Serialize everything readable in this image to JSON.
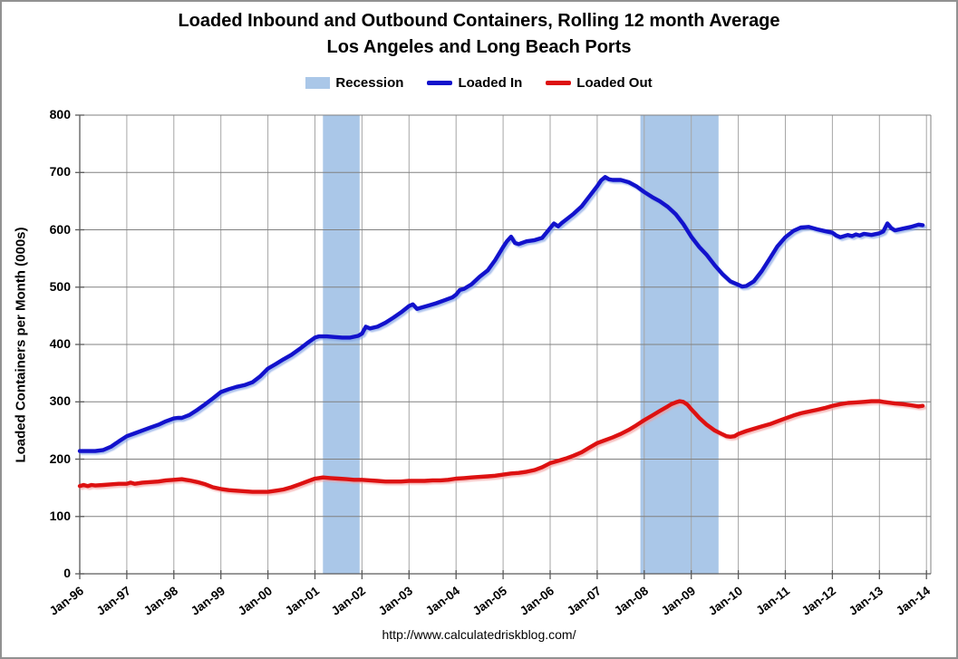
{
  "header": {
    "title": "Loaded Inbound and Outbound Containers, Rolling 12 month Average",
    "subtitle": "Los Angeles and Long Beach Ports"
  },
  "footer": {
    "source_url": "http://www.calculatedriskblog.com/"
  },
  "legend": [
    {
      "label": "Recession",
      "swatch": "box",
      "color": "#aac7e8"
    },
    {
      "label": "Loaded In",
      "swatch": "line",
      "color": "#1212cc"
    },
    {
      "label": "Loaded Out",
      "swatch": "line",
      "color": "#dd1111"
    }
  ],
  "colors": {
    "recession_band": "#aac7e8",
    "loaded_in": "#1212cc",
    "loaded_out": "#dd1111",
    "grid_h": "#808080",
    "grid_v": "#a6a6a6",
    "axis": "#5a5a5a",
    "background": "#ffffff"
  },
  "chart_data": {
    "type": "line",
    "title": "Loaded Inbound and Outbound Containers, Rolling 12 month Average",
    "subtitle": "Los Angeles and Long Beach Ports",
    "ylabel": "Loaded Containers per Month (000s)",
    "xlabel": "",
    "ylim": [
      0,
      800
    ],
    "y_tick_step": 100,
    "y_ticks": [
      0,
      100,
      200,
      300,
      400,
      500,
      600,
      700,
      800
    ],
    "x_ticks": [
      "Jan-96",
      "Jan-97",
      "Jan-98",
      "Jan-99",
      "Jan-00",
      "Jan-01",
      "Jan-02",
      "Jan-03",
      "Jan-04",
      "Jan-05",
      "Jan-06",
      "Jan-07",
      "Jan-08",
      "Jan-09",
      "Jan-10",
      "Jan-11",
      "Jan-12",
      "Jan-13",
      "Jan-14"
    ],
    "x_start_year": 1996,
    "grid": true,
    "legend_position": "top",
    "recessions": [
      {
        "label": "2001 recession",
        "start": 2001.17,
        "end": 2001.95
      },
      {
        "label": "2007-2009 recession",
        "start": 2007.92,
        "end": 2009.58
      }
    ],
    "series": [
      {
        "name": "Loaded In",
        "color": "#1212cc",
        "points": [
          [
            1996.0,
            214
          ],
          [
            1996.17,
            214
          ],
          [
            1996.33,
            214
          ],
          [
            1996.5,
            216
          ],
          [
            1996.67,
            222
          ],
          [
            1996.83,
            231
          ],
          [
            1997.0,
            240
          ],
          [
            1997.17,
            245
          ],
          [
            1997.33,
            250
          ],
          [
            1997.5,
            255
          ],
          [
            1997.67,
            260
          ],
          [
            1997.83,
            266
          ],
          [
            1998.0,
            271
          ],
          [
            1998.08,
            272
          ],
          [
            1998.17,
            272
          ],
          [
            1998.33,
            277
          ],
          [
            1998.5,
            286
          ],
          [
            1998.67,
            296
          ],
          [
            1998.83,
            306
          ],
          [
            1999.0,
            317
          ],
          [
            1999.17,
            322
          ],
          [
            1999.33,
            326
          ],
          [
            1999.5,
            329
          ],
          [
            1999.67,
            334
          ],
          [
            1999.83,
            344
          ],
          [
            2000.0,
            358
          ],
          [
            2000.17,
            366
          ],
          [
            2000.33,
            374
          ],
          [
            2000.5,
            382
          ],
          [
            2000.67,
            392
          ],
          [
            2000.83,
            402
          ],
          [
            2001.0,
            412
          ],
          [
            2001.08,
            414
          ],
          [
            2001.25,
            414
          ],
          [
            2001.42,
            413
          ],
          [
            2001.58,
            412
          ],
          [
            2001.75,
            412
          ],
          [
            2001.92,
            415
          ],
          [
            2002.0,
            419
          ],
          [
            2002.08,
            431
          ],
          [
            2002.17,
            428
          ],
          [
            2002.33,
            431
          ],
          [
            2002.5,
            438
          ],
          [
            2002.67,
            447
          ],
          [
            2002.83,
            456
          ],
          [
            2003.0,
            467
          ],
          [
            2003.08,
            470
          ],
          [
            2003.17,
            462
          ],
          [
            2003.25,
            464
          ],
          [
            2003.42,
            468
          ],
          [
            2003.58,
            472
          ],
          [
            2003.75,
            477
          ],
          [
            2003.92,
            482
          ],
          [
            2004.0,
            487
          ],
          [
            2004.08,
            495
          ],
          [
            2004.17,
            497
          ],
          [
            2004.33,
            505
          ],
          [
            2004.5,
            518
          ],
          [
            2004.67,
            529
          ],
          [
            2004.83,
            547
          ],
          [
            2005.0,
            570
          ],
          [
            2005.08,
            580
          ],
          [
            2005.17,
            588
          ],
          [
            2005.25,
            577
          ],
          [
            2005.33,
            575
          ],
          [
            2005.5,
            580
          ],
          [
            2005.67,
            582
          ],
          [
            2005.83,
            586
          ],
          [
            2006.0,
            603
          ],
          [
            2006.08,
            611
          ],
          [
            2006.17,
            606
          ],
          [
            2006.25,
            612
          ],
          [
            2006.33,
            617
          ],
          [
            2006.5,
            628
          ],
          [
            2006.67,
            641
          ],
          [
            2006.83,
            658
          ],
          [
            2007.0,
            676
          ],
          [
            2007.08,
            686
          ],
          [
            2007.17,
            692
          ],
          [
            2007.25,
            688
          ],
          [
            2007.33,
            687
          ],
          [
            2007.5,
            687
          ],
          [
            2007.67,
            683
          ],
          [
            2007.83,
            676
          ],
          [
            2008.0,
            666
          ],
          [
            2008.17,
            657
          ],
          [
            2008.33,
            650
          ],
          [
            2008.5,
            640
          ],
          [
            2008.67,
            627
          ],
          [
            2008.83,
            610
          ],
          [
            2009.0,
            588
          ],
          [
            2009.17,
            570
          ],
          [
            2009.33,
            556
          ],
          [
            2009.5,
            538
          ],
          [
            2009.67,
            522
          ],
          [
            2009.83,
            510
          ],
          [
            2010.0,
            504
          ],
          [
            2010.08,
            501
          ],
          [
            2010.17,
            502
          ],
          [
            2010.33,
            510
          ],
          [
            2010.5,
            528
          ],
          [
            2010.67,
            550
          ],
          [
            2010.83,
            571
          ],
          [
            2011.0,
            587
          ],
          [
            2011.17,
            598
          ],
          [
            2011.33,
            604
          ],
          [
            2011.5,
            605
          ],
          [
            2011.67,
            601
          ],
          [
            2011.83,
            598
          ],
          [
            2012.0,
            595
          ],
          [
            2012.08,
            590
          ],
          [
            2012.17,
            587
          ],
          [
            2012.33,
            591
          ],
          [
            2012.42,
            589
          ],
          [
            2012.5,
            592
          ],
          [
            2012.58,
            590
          ],
          [
            2012.67,
            593
          ],
          [
            2012.83,
            591
          ],
          [
            2013.0,
            594
          ],
          [
            2013.08,
            597
          ],
          [
            2013.17,
            611
          ],
          [
            2013.25,
            603
          ],
          [
            2013.33,
            599
          ],
          [
            2013.5,
            602
          ],
          [
            2013.67,
            605
          ],
          [
            2013.83,
            609
          ],
          [
            2013.92,
            608
          ]
        ]
      },
      {
        "name": "Loaded Out",
        "color": "#dd1111",
        "points": [
          [
            1996.0,
            153
          ],
          [
            1996.08,
            155
          ],
          [
            1996.17,
            153
          ],
          [
            1996.25,
            155
          ],
          [
            1996.33,
            154
          ],
          [
            1996.5,
            155
          ],
          [
            1996.67,
            156
          ],
          [
            1996.83,
            157
          ],
          [
            1997.0,
            157
          ],
          [
            1997.08,
            159
          ],
          [
            1997.17,
            157
          ],
          [
            1997.33,
            159
          ],
          [
            1997.5,
            160
          ],
          [
            1997.67,
            161
          ],
          [
            1997.83,
            163
          ],
          [
            1998.0,
            164
          ],
          [
            1998.17,
            165
          ],
          [
            1998.25,
            164
          ],
          [
            1998.33,
            163
          ],
          [
            1998.5,
            160
          ],
          [
            1998.67,
            156
          ],
          [
            1998.83,
            151
          ],
          [
            1999.0,
            148
          ],
          [
            1999.17,
            146
          ],
          [
            1999.33,
            145
          ],
          [
            1999.5,
            144
          ],
          [
            1999.67,
            143
          ],
          [
            1999.83,
            143
          ],
          [
            2000.0,
            143
          ],
          [
            2000.17,
            145
          ],
          [
            2000.33,
            147
          ],
          [
            2000.5,
            151
          ],
          [
            2000.67,
            156
          ],
          [
            2000.83,
            161
          ],
          [
            2001.0,
            166
          ],
          [
            2001.08,
            167
          ],
          [
            2001.17,
            168
          ],
          [
            2001.33,
            167
          ],
          [
            2001.5,
            166
          ],
          [
            2001.67,
            165
          ],
          [
            2001.83,
            164
          ],
          [
            2002.0,
            164
          ],
          [
            2002.17,
            163
          ],
          [
            2002.33,
            162
          ],
          [
            2002.5,
            161
          ],
          [
            2002.67,
            161
          ],
          [
            2002.83,
            161
          ],
          [
            2003.0,
            162
          ],
          [
            2003.17,
            162
          ],
          [
            2003.33,
            162
          ],
          [
            2003.5,
            163
          ],
          [
            2003.67,
            163
          ],
          [
            2003.83,
            164
          ],
          [
            2004.0,
            166
          ],
          [
            2004.17,
            167
          ],
          [
            2004.33,
            168
          ],
          [
            2004.5,
            169
          ],
          [
            2004.67,
            170
          ],
          [
            2004.83,
            171
          ],
          [
            2005.0,
            173
          ],
          [
            2005.17,
            175
          ],
          [
            2005.33,
            176
          ],
          [
            2005.5,
            178
          ],
          [
            2005.67,
            181
          ],
          [
            2005.83,
            186
          ],
          [
            2006.0,
            193
          ],
          [
            2006.17,
            197
          ],
          [
            2006.33,
            201
          ],
          [
            2006.5,
            206
          ],
          [
            2006.67,
            212
          ],
          [
            2006.83,
            220
          ],
          [
            2007.0,
            228
          ],
          [
            2007.17,
            233
          ],
          [
            2007.33,
            238
          ],
          [
            2007.5,
            244
          ],
          [
            2007.67,
            251
          ],
          [
            2007.83,
            259
          ],
          [
            2008.0,
            268
          ],
          [
            2008.17,
            276
          ],
          [
            2008.33,
            284
          ],
          [
            2008.5,
            292
          ],
          [
            2008.58,
            296
          ],
          [
            2008.67,
            299
          ],
          [
            2008.75,
            301
          ],
          [
            2008.83,
            300
          ],
          [
            2008.92,
            295
          ],
          [
            2009.0,
            287
          ],
          [
            2009.08,
            280
          ],
          [
            2009.17,
            272
          ],
          [
            2009.33,
            260
          ],
          [
            2009.5,
            250
          ],
          [
            2009.67,
            243
          ],
          [
            2009.75,
            240
          ],
          [
            2009.83,
            239
          ],
          [
            2009.92,
            240
          ],
          [
            2010.0,
            244
          ],
          [
            2010.17,
            249
          ],
          [
            2010.33,
            253
          ],
          [
            2010.5,
            257
          ],
          [
            2010.67,
            261
          ],
          [
            2010.83,
            266
          ],
          [
            2011.0,
            271
          ],
          [
            2011.17,
            276
          ],
          [
            2011.33,
            280
          ],
          [
            2011.5,
            283
          ],
          [
            2011.67,
            286
          ],
          [
            2011.83,
            289
          ],
          [
            2012.0,
            293
          ],
          [
            2012.17,
            296
          ],
          [
            2012.33,
            298
          ],
          [
            2012.5,
            299
          ],
          [
            2012.67,
            300
          ],
          [
            2012.83,
            301
          ],
          [
            2013.0,
            301
          ],
          [
            2013.08,
            300
          ],
          [
            2013.17,
            299
          ],
          [
            2013.33,
            297
          ],
          [
            2013.5,
            296
          ],
          [
            2013.67,
            294
          ],
          [
            2013.83,
            292
          ],
          [
            2013.92,
            293
          ]
        ]
      }
    ]
  }
}
